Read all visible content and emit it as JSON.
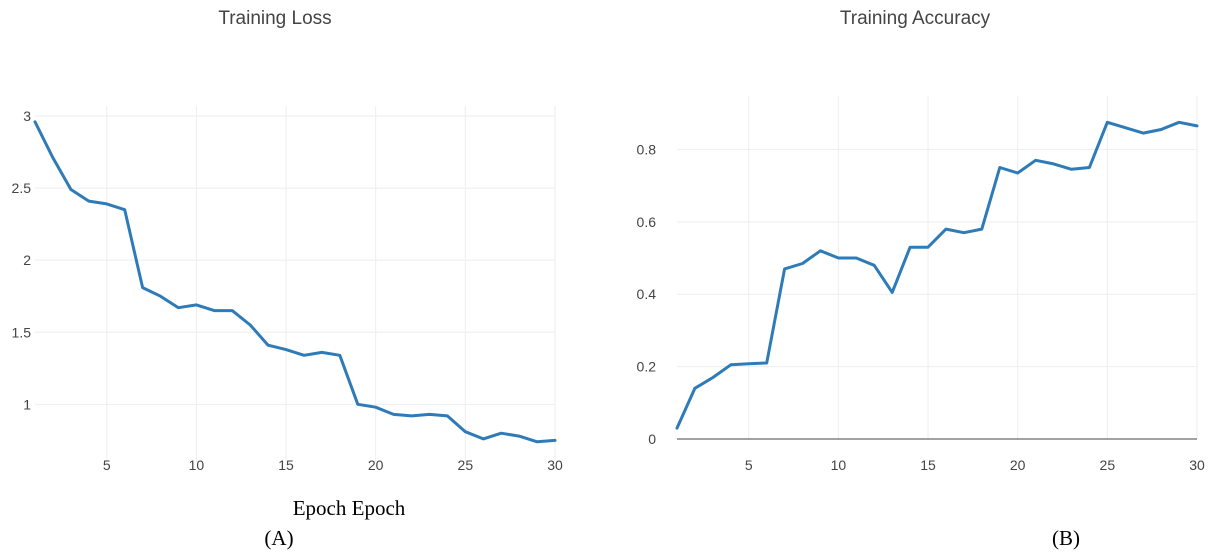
{
  "chart_data": [
    {
      "type": "line",
      "title": "Training Loss",
      "xlabel": "Epoch",
      "ylabel": "",
      "xlim": [
        1,
        30
      ],
      "ylim": [
        0.6,
        3.0
      ],
      "xticks": [
        5,
        10,
        15,
        20,
        25,
        30
      ],
      "yticks": [
        1,
        1.5,
        2,
        2.5,
        3
      ],
      "ytick_labels": [
        "1",
        "1.5",
        "2",
        "2.5",
        "3"
      ],
      "grid": true,
      "legend": "none",
      "color": "#2e7bb7",
      "x": [
        1,
        2,
        3,
        4,
        5,
        6,
        7,
        8,
        9,
        10,
        11,
        12,
        13,
        14,
        15,
        16,
        17,
        18,
        19,
        20,
        21,
        22,
        23,
        24,
        25,
        26,
        27,
        28,
        29,
        30
      ],
      "y": [
        2.96,
        2.71,
        2.49,
        2.41,
        2.39,
        2.35,
        1.81,
        1.75,
        1.67,
        1.69,
        1.65,
        1.65,
        1.55,
        1.41,
        1.38,
        1.34,
        1.36,
        1.34,
        1.0,
        0.98,
        0.93,
        0.92,
        0.93,
        0.92,
        0.81,
        0.76,
        0.8,
        0.78,
        0.74,
        0.75
      ],
      "caption": "(A)"
    },
    {
      "type": "line",
      "title": "Training Accuracy",
      "xlabel": "Epoch",
      "ylabel": "",
      "xlim": [
        1,
        30
      ],
      "ylim": [
        0,
        0.92
      ],
      "xticks": [
        5,
        10,
        15,
        20,
        25,
        30
      ],
      "yticks": [
        0,
        0.2,
        0.4,
        0.6,
        0.8
      ],
      "ytick_labels": [
        "0",
        "0.2",
        "0.4",
        "0.6",
        "0.8"
      ],
      "grid": true,
      "legend": "none",
      "color": "#2e7bb7",
      "x": [
        1,
        2,
        3,
        4,
        5,
        6,
        7,
        8,
        9,
        10,
        11,
        12,
        13,
        14,
        15,
        16,
        17,
        18,
        19,
        20,
        21,
        22,
        23,
        24,
        25,
        26,
        27,
        28,
        29,
        30
      ],
      "y": [
        0.03,
        0.14,
        0.17,
        0.205,
        0.208,
        0.21,
        0.47,
        0.485,
        0.52,
        0.5,
        0.5,
        0.48,
        0.405,
        0.53,
        0.53,
        0.58,
        0.57,
        0.58,
        0.75,
        0.735,
        0.77,
        0.76,
        0.745,
        0.75,
        0.875,
        0.86,
        0.845,
        0.855,
        0.875,
        0.865
      ],
      "caption": "(B)"
    }
  ],
  "xlabel_text": "Epoch Epoch"
}
